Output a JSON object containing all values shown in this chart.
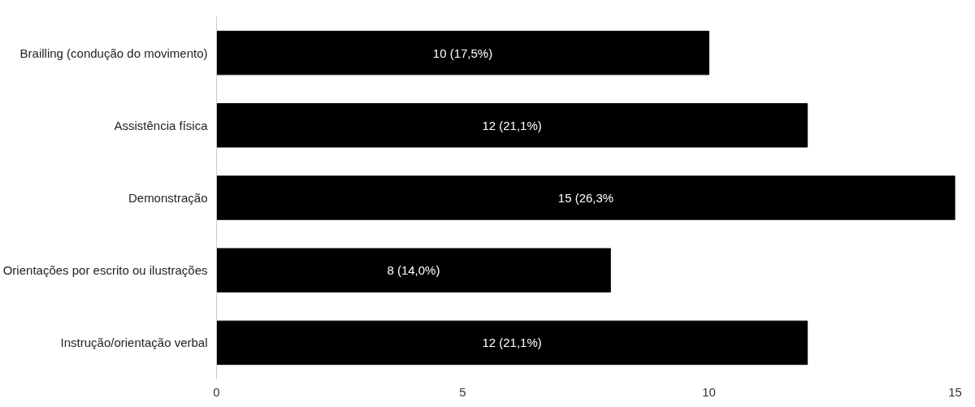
{
  "chart_data": {
    "type": "bar",
    "orientation": "horizontal",
    "categories": [
      "Brailling (condução do movimento)",
      "Assistência física",
      "Demonstração",
      "Orientações por escrito ou ilustrações",
      "Instrução/orientação verbal"
    ],
    "values": [
      10,
      12,
      15,
      8,
      12
    ],
    "value_labels": [
      "10 (17,5%)",
      "12 (21,1%)",
      "15 (26,3%",
      "8 (14,0%)",
      "12 (21,1%)"
    ],
    "color": "#000000",
    "xlim": [
      0,
      15
    ],
    "xticks": [
      0,
      5,
      10,
      15
    ],
    "grid": false
  }
}
